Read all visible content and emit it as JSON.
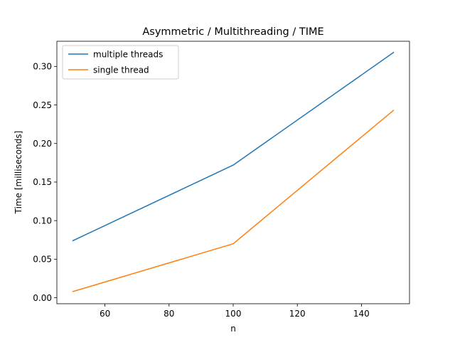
{
  "chart_data": {
    "type": "line",
    "title": "Asymmetric / Multithreading / TIME",
    "xlabel": "n",
    "ylabel": "Time [milliseconds]",
    "x": [
      50,
      100,
      150
    ],
    "xlim": [
      45.0,
      155.0
    ],
    "ylim": [
      -0.0078,
      0.3326
    ],
    "xticks": [
      60,
      80,
      100,
      120,
      140
    ],
    "xtick_labels": [
      "60",
      "80",
      "100",
      "120",
      "140"
    ],
    "yticks": [
      0.0,
      0.05,
      0.1,
      0.15,
      0.2,
      0.25,
      0.3
    ],
    "ytick_labels": [
      "0.00",
      "0.05",
      "0.10",
      "0.15",
      "0.20",
      "0.25",
      "0.30"
    ],
    "grid": false,
    "legend": "top-left",
    "series": [
      {
        "name": "multiple threads",
        "values": [
          0.074,
          0.172,
          0.318
        ],
        "color": "#1f77b4"
      },
      {
        "name": "single thread",
        "values": [
          0.008,
          0.07,
          0.243
        ],
        "color": "#ff7f0e"
      }
    ]
  }
}
